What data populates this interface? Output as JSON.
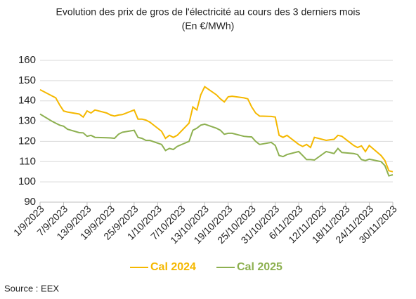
{
  "chart_data": {
    "type": "line",
    "title": "Evolution des prix de gros de l'électricité au cours des 3 derniers mois",
    "subtitle": "(En €/MWh)",
    "source": "Source : EEX",
    "x": [
      "1/9/2023",
      "4/9/2023",
      "5/9/2023",
      "6/9/2023",
      "7/9/2023",
      "8/9/2023",
      "11/9/2023",
      "12/9/2023",
      "13/9/2023",
      "14/9/2023",
      "15/9/2023",
      "18/9/2023",
      "19/9/2023",
      "20/9/2023",
      "21/9/2023",
      "22/9/2023",
      "25/9/2023",
      "26/9/2023",
      "27/9/2023",
      "28/9/2023",
      "29/9/2023",
      "2/10/2023",
      "3/10/2023",
      "4/10/2023",
      "5/10/2023",
      "6/10/2023",
      "9/10/2023",
      "10/10/2023",
      "11/10/2023",
      "12/10/2023",
      "13/10/2023",
      "16/10/2023",
      "17/10/2023",
      "18/10/2023",
      "19/10/2023",
      "20/10/2023",
      "23/10/2023",
      "24/10/2023",
      "25/10/2023",
      "26/10/2023",
      "27/10/2023",
      "30/10/2023",
      "31/10/2023",
      "1/11/2023",
      "2/11/2023",
      "3/11/2023",
      "6/11/2023",
      "7/11/2023",
      "8/11/2023",
      "9/11/2023",
      "10/11/2023",
      "13/11/2023",
      "14/11/2023",
      "15/11/2023",
      "16/11/2023",
      "17/11/2023",
      "20/11/2023",
      "21/11/2023",
      "22/11/2023",
      "23/11/2023",
      "24/11/2023",
      "27/11/2023",
      "28/11/2023",
      "29/11/2023",
      "30/11/2023"
    ],
    "series": [
      {
        "name": "Cal 2024",
        "color": "#f5b800",
        "values": [
          145.5,
          142.5,
          141.5,
          138,
          135,
          134.5,
          133.5,
          132,
          135,
          134,
          135.5,
          134,
          133,
          132.5,
          133,
          133.2,
          135.5,
          131,
          131,
          130.5,
          129.5,
          125,
          121.5,
          123,
          122,
          123,
          129,
          137,
          135.5,
          143,
          147,
          143,
          141,
          139.5,
          142,
          142.3,
          141.5,
          141,
          137,
          134,
          132.5,
          132.3,
          132,
          123,
          122,
          123,
          118.5,
          117.5,
          118.5,
          117,
          122,
          120.5,
          120.8,
          121,
          123,
          122.5,
          118,
          117,
          117.8,
          115,
          118,
          113,
          110.5,
          105.5,
          105
        ]
      },
      {
        "name": "Cal 2025",
        "color": "#8db050",
        "values": [
          133.5,
          130,
          129,
          128,
          127.5,
          126,
          124.3,
          124.2,
          122.5,
          123,
          122,
          121.8,
          121.7,
          121.5,
          123.5,
          124.5,
          125.5,
          122,
          121.5,
          120.5,
          120.5,
          118.5,
          115.5,
          116.5,
          116,
          117.5,
          120,
          125.5,
          126.5,
          128,
          128.5,
          126.5,
          125.5,
          123.5,
          124,
          124,
          122.5,
          122.3,
          122.2,
          120,
          118.5,
          119.5,
          118,
          113,
          112.5,
          113.5,
          115,
          113,
          111,
          111,
          110.8,
          115,
          114.5,
          114,
          116.5,
          114.5,
          114,
          113.5,
          111,
          110.5,
          111.2,
          110,
          108,
          103,
          103.5
        ]
      }
    ],
    "xlim": [
      "1/9/2023",
      "30/11/2023"
    ],
    "xticks": [
      "1/9/2023",
      "7/9/2023",
      "13/9/2023",
      "19/9/2023",
      "25/9/2023",
      "1/10/2023",
      "7/10/2023",
      "13/10/2023",
      "19/10/2023",
      "25/10/2023",
      "31/10/2023",
      "6/11/2023",
      "12/11/2023",
      "18/11/2023",
      "24/11/2023",
      "30/11/2023"
    ],
    "ylim": [
      90,
      160
    ],
    "yticks": [
      90,
      100,
      110,
      120,
      130,
      140,
      150,
      160
    ],
    "grid": true,
    "legend": "bottom"
  }
}
